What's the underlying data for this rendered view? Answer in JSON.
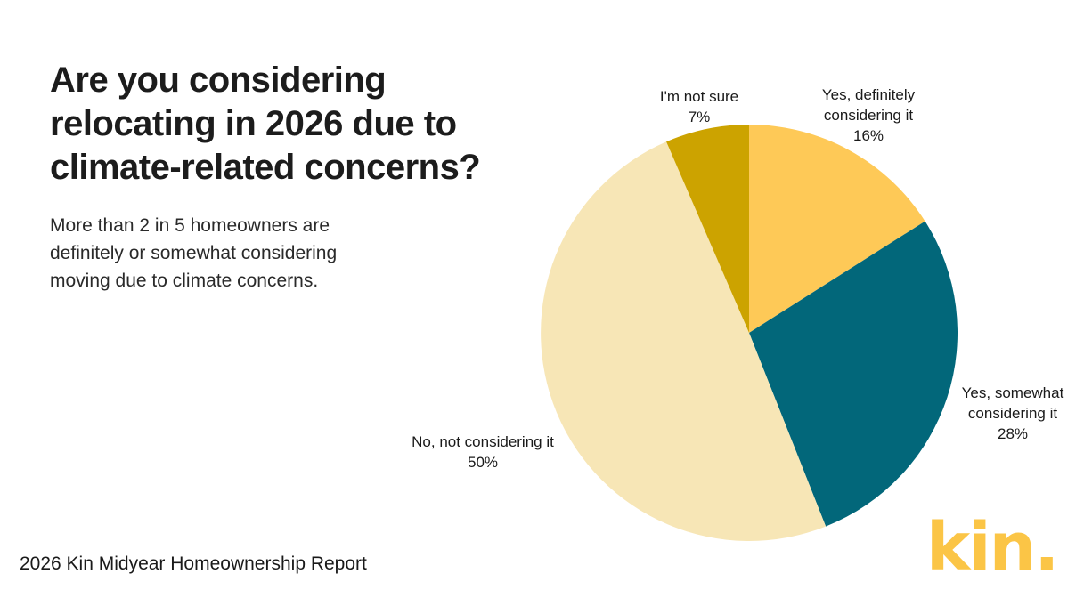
{
  "headline": "Are you considering relocating in 2026 due to climate-related concerns?",
  "subhead": "More than 2 in 5 homeowners are definitely or somewhat considering moving due to climate concerns.",
  "source": "2026 Kin Midyear Homeownership Report",
  "logo": {
    "text": "kin.",
    "color": "#fbc546"
  },
  "chart_data": {
    "type": "pie",
    "start_angle_deg": 0,
    "direction": "clockwise",
    "slices": [
      {
        "label_lines": [
          "Yes, definitely",
          "considering it"
        ],
        "pct_label": "16%",
        "value": 16,
        "color": "#fec957"
      },
      {
        "label_lines": [
          "Yes, somewhat",
          "considering it"
        ],
        "pct_label": "28%",
        "value": 28,
        "color": "#02677a"
      },
      {
        "label_lines": [
          "No, not considering it"
        ],
        "pct_label": "50%",
        "value": 49.5,
        "color": "#f7e6b6"
      },
      {
        "label_lines": [
          "I'm not sure"
        ],
        "pct_label": "7%",
        "value": 6.5,
        "color": "#cca300"
      }
    ]
  }
}
